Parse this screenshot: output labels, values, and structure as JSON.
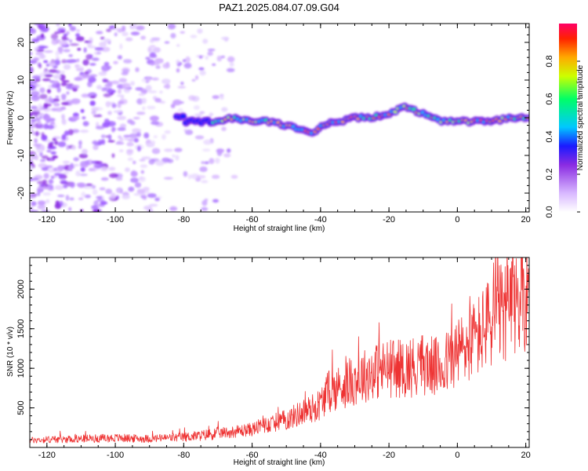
{
  "title": "PAZ1.2025.084.07.09.G04",
  "chart_data": [
    {
      "type": "heatmap",
      "xlabel": "Height of straight line (km)",
      "ylabel": "Frequency (Hz)",
      "xlim": [
        -125,
        21
      ],
      "ylim": [
        -25,
        25
      ],
      "xticks": [
        -120,
        -100,
        -80,
        -60,
        -40,
        -20,
        0,
        20
      ],
      "yticks": [
        -20,
        -10,
        0,
        10,
        20
      ],
      "colorbar": {
        "label": "Normalized spectral amplitude",
        "range": [
          0,
          1
        ],
        "ticks": [
          0.0,
          0.2,
          0.4,
          0.6,
          0.8
        ],
        "colors": [
          "#ffffff",
          "#d8b8ff",
          "#8a2be2",
          "#1a1aff",
          "#00c8ff",
          "#00ff66",
          "#ccff00",
          "#ffaa00",
          "#ff2200",
          "#ff0066"
        ]
      },
      "ridge": {
        "x": [
          -80,
          -72,
          -65,
          -60,
          -55,
          -50,
          -45,
          -42,
          -40,
          -35,
          -30,
          -25,
          -20,
          -15,
          -13,
          -10,
          -5,
          0,
          5,
          10,
          15,
          21
        ],
        "y": [
          -1,
          -1,
          0,
          -1,
          -1,
          -2,
          -3,
          -4,
          -2,
          -1,
          0,
          0,
          1,
          3,
          2,
          1,
          -1,
          -1,
          -1,
          -1,
          0,
          0
        ]
      }
    },
    {
      "type": "line",
      "xlabel": "Height of straight line (km)",
      "ylabel": "SNR (10 * v/v)",
      "xlim": [
        -125,
        21
      ],
      "ylim": [
        0,
        2400
      ],
      "xticks": [
        -120,
        -100,
        -80,
        -60,
        -40,
        -20,
        0,
        20
      ],
      "yticks": [
        500,
        1000,
        1500,
        2000
      ],
      "color": "#ee3333",
      "series": [
        {
          "x": [
            -125,
            -120,
            -110,
            -100,
            -90,
            -80,
            -75,
            -70,
            -65,
            -60,
            -55,
            -50,
            -45,
            -42,
            -40,
            -38,
            -35,
            -30,
            -25,
            -20,
            -15,
            -10,
            -5,
            0,
            5,
            10,
            15,
            20,
            21
          ],
          "y": [
            90,
            100,
            110,
            120,
            110,
            130,
            150,
            180,
            200,
            230,
            300,
            350,
            450,
            500,
            550,
            700,
            750,
            850,
            950,
            1000,
            1000,
            1050,
            1000,
            1200,
            1350,
            1600,
            1750,
            1950,
            2100
          ]
        }
      ]
    }
  ]
}
